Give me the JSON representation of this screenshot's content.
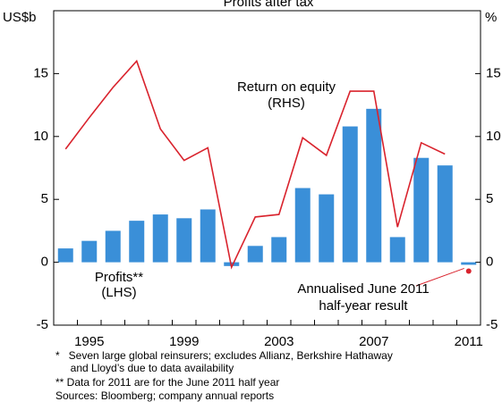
{
  "chart_data": {
    "type": "bar-line",
    "title": "Profits after tax",
    "y_label": "US$b",
    "y2_label": "%",
    "categories": [
      null,
      "1995",
      null,
      null,
      null,
      "1999",
      null,
      null,
      null,
      "2003",
      null,
      null,
      null,
      "2007",
      null,
      null,
      null,
      "2011"
    ],
    "ylim": [
      -5,
      20
    ],
    "yticks": [
      -5,
      0,
      5,
      10,
      15
    ],
    "y2lim": [
      -5,
      20
    ],
    "y2ticks": [
      -5,
      0,
      5,
      10,
      15
    ],
    "series": [
      {
        "name": "Profits**",
        "note": "(LHS)",
        "color": "#3a8fd8",
        "kind": "bar",
        "values": [
          1.1,
          1.7,
          2.5,
          3.3,
          3.8,
          3.5,
          4.2,
          -0.3,
          1.3,
          2.0,
          5.9,
          5.4,
          10.8,
          12.2,
          2.0,
          8.3,
          7.7,
          -0.2
        ]
      },
      {
        "name": "Return on equity",
        "note": "(RHS)",
        "color": "#d9232d",
        "kind": "line",
        "axis": "y2",
        "values": [
          9.0,
          11.5,
          13.9,
          16.0,
          10.6,
          8.1,
          9.1,
          -0.4,
          3.6,
          3.8,
          9.9,
          8.5,
          13.6,
          13.6,
          2.8,
          9.5,
          8.6,
          null
        ]
      },
      {
        "name": "Annualised June 2011",
        "note": "half-year result",
        "color": "#d9232d",
        "kind": "dot",
        "axis": "y2",
        "values": [
          null,
          null,
          null,
          null,
          null,
          null,
          null,
          null,
          null,
          null,
          null,
          null,
          null,
          null,
          null,
          null,
          null,
          -0.7
        ]
      }
    ],
    "footnotes": [
      "*   Seven large global reinsurers; excludes Allianz, Berkshire Hathaway",
      "     and Lloyd’s due to data availability",
      "** Data for 2011 are for the June 2011 half year",
      "Sources: Bloomberg; company annual reports"
    ]
  }
}
